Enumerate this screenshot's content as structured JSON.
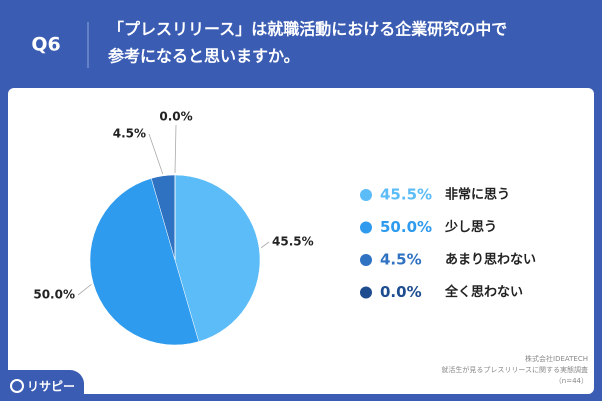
{
  "chart_data": {
    "type": "pie",
    "question": "Q6",
    "title": [
      "「プレスリリース」は就職活動における企業研究の中で",
      "参考になると思いますか。"
    ],
    "categories": [
      "非常に思う",
      "少し思う",
      "あまり思わない",
      "全く思わない"
    ],
    "values": [
      45.5,
      50.0,
      4.5,
      0.0
    ],
    "value_labels": [
      "45.5%",
      "50.0%",
      "4.5%",
      "0.0%"
    ],
    "colors": [
      "#5bbcf7",
      "#2e9bee",
      "#2f72c2",
      "#1e4d8f"
    ],
    "source": [
      "株式会社IDEATECH",
      "就活生が見るプレスリリースに関する実態調査",
      "（n=44）"
    ],
    "brand": "リサピー"
  }
}
